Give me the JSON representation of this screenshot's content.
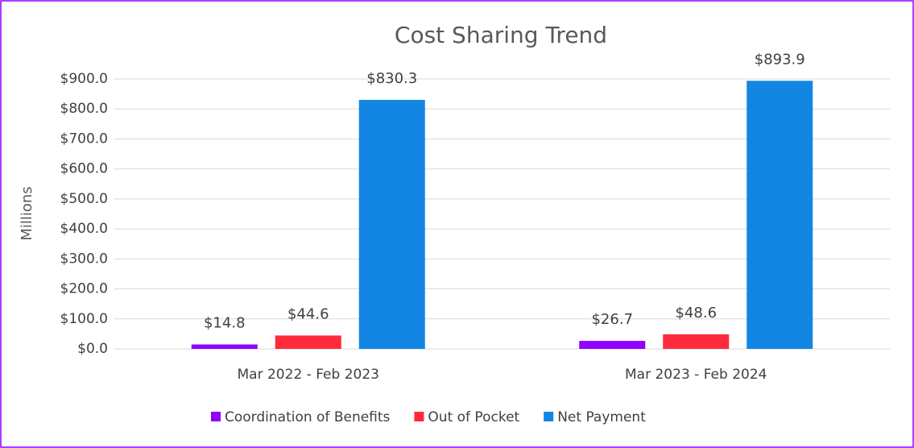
{
  "chart_data": {
    "type": "bar",
    "title": "Cost Sharing Trend",
    "y_label": "Millions",
    "categories": [
      "Mar 2022 - Feb 2023",
      "Mar 2023 - Feb 2024"
    ],
    "series": [
      {
        "name": "Coordination of Benefits",
        "color": "#8f00ff",
        "values": [
          14.8,
          26.7
        ],
        "value_labels": [
          "$14.8",
          "$26.7"
        ]
      },
      {
        "name": "Out of Pocket",
        "color": "#ff2a3c",
        "values": [
          44.6,
          48.6
        ],
        "value_labels": [
          "$44.6",
          "$48.6"
        ]
      },
      {
        "name": "Net Payment",
        "color": "#1385e3",
        "values": [
          830.3,
          893.9
        ],
        "value_labels": [
          "$830.3",
          "$893.9"
        ]
      }
    ],
    "ylim": [
      0,
      900
    ],
    "yticks": [
      {
        "value": 0,
        "label": "$0.0"
      },
      {
        "value": 100,
        "label": "$100.0"
      },
      {
        "value": 200,
        "label": "$200.0"
      },
      {
        "value": 300,
        "label": "$300.0"
      },
      {
        "value": 400,
        "label": "$400.0"
      },
      {
        "value": 500,
        "label": "$500.0"
      },
      {
        "value": 600,
        "label": "$600.0"
      },
      {
        "value": 700,
        "label": "$700.0"
      },
      {
        "value": 800,
        "label": "$800.0"
      },
      {
        "value": 900,
        "label": "$900.0"
      }
    ],
    "grid": true,
    "legend": "bottom"
  }
}
